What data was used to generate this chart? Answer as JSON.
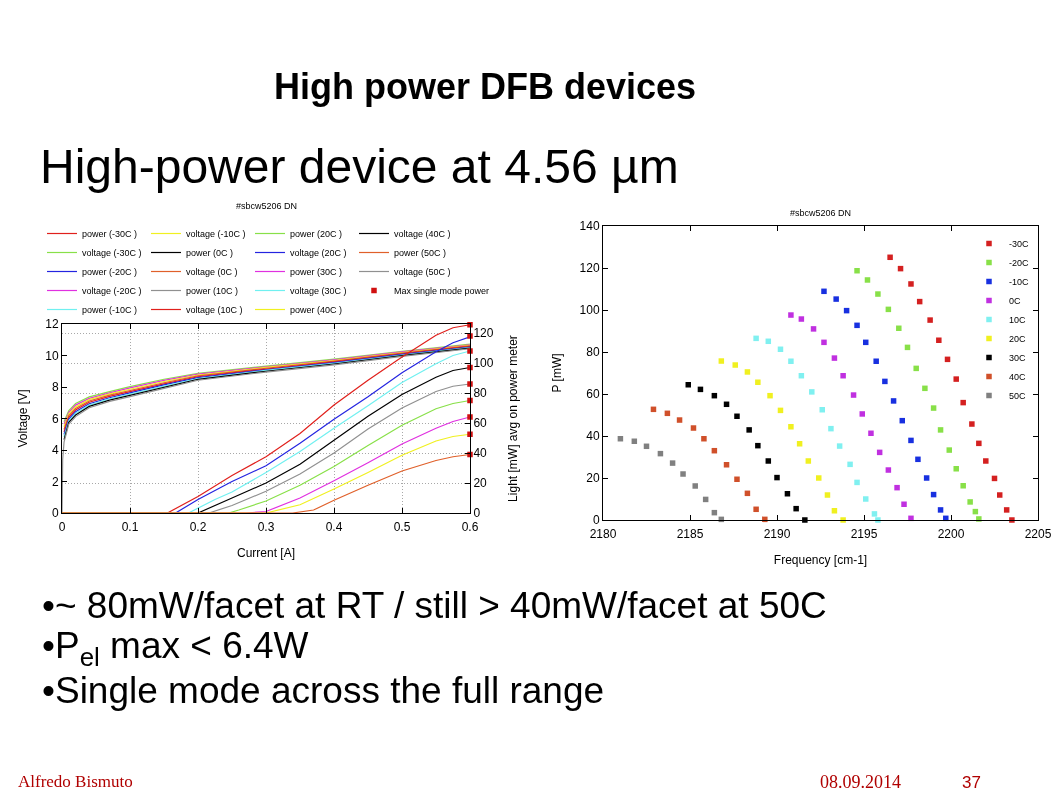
{
  "chart_data": [
    {
      "type": "other",
      "title": "High power DFB devices",
      "subtitle": "High-power device at 4.56 µm",
      "annotations": [
        "•~ 80mW/facet at RT / still > 40mW/facet at 50C",
        "•P$_{el}$ max < 6.4W",
        "•Single mode across the full range",
        "Alfredo Bismuto",
        "08.09.2014",
        "37"
      ]
    },
    {
      "type": "line",
      "title": "#sbcw5206 DN",
      "xlabel": "Current [A]",
      "ylabel": "Voltage [V]",
      "y2label": "Light [mW] avg on power meter",
      "xlim": [
        0,
        0.6
      ],
      "xticks": [
        0,
        0.1,
        0.2,
        0.3,
        0.4,
        0.5,
        0.6
      ],
      "ylim": [
        0,
        12
      ],
      "yticks": [
        0,
        2,
        4,
        6,
        8,
        10,
        12
      ],
      "y2lim": [
        0,
        126
      ],
      "y2ticks": [
        0,
        20,
        40,
        60,
        80,
        100,
        120
      ],
      "grid": true,
      "legend": "top",
      "line_style": "solid",
      "series": [
        {
          "name": "power (-30C )",
          "color": "#e0201c",
          "axis": "y2",
          "x": [
            0,
            0.155,
            0.2,
            0.25,
            0.3,
            0.35,
            0.4,
            0.45,
            0.5,
            0.55,
            0.575,
            0.6
          ],
          "values": [
            0,
            0,
            11,
            25,
            37.5,
            53,
            72,
            88.5,
            104,
            118.5,
            123.5,
            125.5
          ]
        },
        {
          "name": "voltage (-30C )",
          "color": "#88e048",
          "x": [
            0.003,
            0.01,
            0.02,
            0.04,
            0.07,
            0.1,
            0.15,
            0.2,
            0.3,
            0.4,
            0.5,
            0.6
          ],
          "values": [
            5.8,
            6.5,
            6.95,
            7.37,
            7.71,
            8.02,
            8.49,
            8.87,
            9.33,
            9.77,
            10.27,
            10.72
          ]
        },
        {
          "name": "power (-20C )",
          "color": "#2424e0",
          "axis": "y2",
          "x": [
            0,
            0.167,
            0.2,
            0.25,
            0.3,
            0.35,
            0.4,
            0.45,
            0.5,
            0.55,
            0.575,
            0.6
          ],
          "values": [
            0,
            0,
            9,
            21,
            31.5,
            46.5,
            62.5,
            77.5,
            93.5,
            107.5,
            113.5,
            117.5
          ]
        },
        {
          "name": "voltage (-20C )",
          "color": "#e030e0",
          "x": [
            0.003,
            0.01,
            0.02,
            0.04,
            0.07,
            0.1,
            0.15,
            0.2,
            0.3,
            0.4,
            0.5,
            0.6
          ],
          "values": [
            5.64,
            6.39,
            6.85,
            7.28,
            7.63,
            7.94,
            8.42,
            8.82,
            9.28,
            9.73,
            10.23,
            10.68
          ]
        },
        {
          "name": "power (-10C )",
          "color": "#70f0f0",
          "axis": "y2",
          "x": [
            0,
            0.186,
            0.225,
            0.25,
            0.3,
            0.35,
            0.4,
            0.45,
            0.5,
            0.55,
            0.575,
            0.6
          ],
          "values": [
            0,
            0,
            9,
            14,
            27,
            41,
            56.5,
            71.5,
            87,
            99.5,
            105,
            108
          ]
        },
        {
          "name": "voltage (-10C )",
          "color": "#f0f020",
          "x": [
            0.003,
            0.01,
            0.02,
            0.04,
            0.07,
            0.1,
            0.15,
            0.2,
            0.3,
            0.4,
            0.5,
            0.6
          ],
          "values": [
            5.48,
            6.29,
            6.74,
            7.2,
            7.56,
            7.86,
            8.35,
            8.76,
            9.24,
            9.68,
            10.19,
            10.65
          ]
        },
        {
          "name": "power (0C )",
          "color": "#000000",
          "axis": "y2",
          "x": [
            0,
            0.2,
            0.25,
            0.3,
            0.35,
            0.4,
            0.45,
            0.5,
            0.55,
            0.575,
            0.6
          ],
          "values": [
            0,
            0,
            10,
            20,
            32.5,
            48.5,
            64.5,
            79,
            90.5,
            95,
            97
          ]
        },
        {
          "name": "voltage (0C )",
          "color": "#e0602a",
          "x": [
            0.003,
            0.01,
            0.02,
            0.04,
            0.07,
            0.1,
            0.15,
            0.2,
            0.3,
            0.4,
            0.5,
            0.6
          ],
          "values": [
            5.31,
            6.18,
            6.64,
            7.11,
            7.48,
            7.78,
            8.27,
            8.71,
            9.19,
            9.64,
            10.15,
            10.61
          ]
        },
        {
          "name": "power (10C )",
          "color": "#909090",
          "axis": "y2",
          "x": [
            0,
            0.216,
            0.25,
            0.3,
            0.35,
            0.4,
            0.45,
            0.5,
            0.55,
            0.575,
            0.6
          ],
          "values": [
            0,
            0,
            5,
            14.5,
            26,
            40,
            56,
            70,
            81,
            84.5,
            86
          ]
        },
        {
          "name": "voltage (10C )",
          "color": "#e0201c",
          "x": [
            0.003,
            0.01,
            0.02,
            0.04,
            0.07,
            0.1,
            0.15,
            0.2,
            0.3,
            0.4,
            0.5,
            0.6
          ],
          "values": [
            5.15,
            6.08,
            6.54,
            7.03,
            7.4,
            7.71,
            8.2,
            8.65,
            9.14,
            9.59,
            10.11,
            10.58
          ]
        },
        {
          "name": "power (20C )",
          "color": "#88e048",
          "axis": "y2",
          "x": [
            0,
            0.245,
            0.26,
            0.3,
            0.35,
            0.4,
            0.45,
            0.5,
            0.55,
            0.575,
            0.6
          ],
          "values": [
            0,
            0,
            2,
            8,
            18.5,
            31,
            45,
            58.5,
            69.5,
            73,
            75
          ]
        },
        {
          "name": "voltage (20C )",
          "color": "#2424e0",
          "x": [
            0.003,
            0.01,
            0.02,
            0.04,
            0.07,
            0.1,
            0.15,
            0.2,
            0.3,
            0.4,
            0.5,
            0.6
          ],
          "values": [
            4.99,
            5.97,
            6.43,
            6.94,
            7.32,
            7.63,
            8.13,
            8.6,
            9.09,
            9.55,
            10.07,
            10.54
          ]
        },
        {
          "name": "power (30C )",
          "color": "#e030e0",
          "axis": "y2",
          "x": [
            0,
            0.27,
            0.3,
            0.35,
            0.4,
            0.45,
            0.5,
            0.55,
            0.575,
            0.6
          ],
          "values": [
            0,
            0,
            1,
            10,
            21.5,
            33.5,
            46,
            56.5,
            61,
            64
          ]
        },
        {
          "name": "voltage (30C )",
          "color": "#70f0f0",
          "x": [
            0.003,
            0.01,
            0.02,
            0.04,
            0.07,
            0.1,
            0.15,
            0.2,
            0.3,
            0.4,
            0.5,
            0.6
          ],
          "values": [
            4.83,
            5.86,
            6.33,
            6.85,
            7.25,
            7.55,
            8.06,
            8.54,
            9.05,
            9.5,
            10.03,
            10.5
          ]
        },
        {
          "name": "power (40C )",
          "color": "#f0f020",
          "axis": "y2",
          "x": [
            0,
            0.3,
            0.35,
            0.4,
            0.45,
            0.5,
            0.55,
            0.575,
            0.6
          ],
          "values": [
            0,
            0,
            5.5,
            16,
            27,
            38.5,
            48,
            51,
            52.5
          ]
        },
        {
          "name": "voltage (40C )",
          "color": "#000000",
          "x": [
            0.003,
            0.01,
            0.02,
            0.04,
            0.07,
            0.1,
            0.15,
            0.2,
            0.3,
            0.4,
            0.5,
            0.6
          ],
          "values": [
            4.66,
            5.76,
            6.22,
            6.77,
            7.17,
            7.47,
            7.98,
            8.49,
            9.0,
            9.46,
            9.99,
            10.47
          ]
        },
        {
          "name": "power (50C )",
          "color": "#e0602a",
          "axis": "y2",
          "x": [
            0,
            0.339,
            0.37,
            0.4,
            0.45,
            0.5,
            0.55,
            0.575,
            0.6
          ],
          "values": [
            0,
            0,
            2,
            8.5,
            18.5,
            28,
            35,
            37.5,
            39
          ]
        },
        {
          "name": "voltage (50C )",
          "color": "#909090",
          "x": [
            0,
            0.001,
            0.003,
            0.01,
            0.02,
            0.04,
            0.07,
            0.1,
            0.15,
            0.2,
            0.3,
            0.4,
            0.5,
            0.6
          ],
          "values": [
            0,
            3.4,
            4.5,
            5.65,
            6.12,
            6.68,
            7.09,
            7.39,
            7.91,
            8.43,
            8.95,
            9.41,
            9.95,
            10.43
          ]
        },
        {
          "name": "Max single mode power",
          "type": "scatter",
          "marker": "square",
          "color": "#d01010",
          "axis": "y2",
          "x": [
            0.6,
            0.6,
            0.6,
            0.6,
            0.6,
            0.6,
            0.6,
            0.6,
            0.6
          ],
          "values": [
            125.5,
            118,
            108,
            97,
            86,
            75,
            64,
            52.5,
            39
          ]
        }
      ]
    },
    {
      "type": "scatter",
      "title": "#sbcw5206 DN",
      "xlabel": "Frequency [cm-1]",
      "ylabel": "P [mW]",
      "xlim": [
        2180,
        2205
      ],
      "xticks": [
        2180,
        2185,
        2190,
        2195,
        2200,
        2205
      ],
      "ylim": [
        0,
        140
      ],
      "yticks": [
        0,
        20,
        40,
        60,
        80,
        100,
        120,
        140
      ],
      "legend": "top right",
      "marker": "square",
      "series": [
        {
          "name": "-30C",
          "color": "#d42020",
          "x": [
            2196.5,
            2197.1,
            2197.7,
            2198.2,
            2198.8,
            2199.3,
            2199.8,
            2200.3,
            2200.7,
            2201.2,
            2201.6,
            2202.0,
            2202.5,
            2202.8,
            2203.2,
            2203.5
          ],
          "values": [
            125.1,
            119.7,
            112.4,
            104.0,
            95.2,
            85.6,
            76.5,
            67.1,
            55.9,
            45.7,
            36.5,
            28.1,
            19.8,
            11.9,
            4.8,
            0
          ]
        },
        {
          "name": "-20C",
          "color": "#88e048",
          "x": [
            2194.6,
            2195.2,
            2195.8,
            2196.4,
            2197.0,
            2197.5,
            2198.0,
            2198.5,
            2199.0,
            2199.4,
            2199.9,
            2200.3,
            2200.7,
            2201.1,
            2201.4,
            2201.6
          ],
          "values": [
            118.7,
            114.3,
            107.6,
            100.3,
            91.3,
            82.2,
            72.2,
            62.7,
            53.3,
            42.9,
            33.3,
            24.4,
            16.3,
            8.6,
            4.0,
            0.5
          ]
        },
        {
          "name": "-10C",
          "color": "#1830e0",
          "x": [
            2192.7,
            2193.4,
            2194.0,
            2194.6,
            2195.1,
            2195.7,
            2196.2,
            2196.7,
            2197.2,
            2197.7,
            2198.1,
            2198.6,
            2199.0,
            2199.4,
            2199.7
          ],
          "values": [
            108.9,
            105.2,
            99.7,
            92.7,
            84.6,
            75.6,
            66.0,
            56.7,
            47.3,
            37.9,
            28.9,
            20.0,
            12.1,
            4.8,
            0.8
          ]
        },
        {
          "name": "0C",
          "color": "#c030e0",
          "x": [
            2190.8,
            2191.4,
            2192.1,
            2192.7,
            2193.3,
            2193.8,
            2194.4,
            2194.9,
            2195.4,
            2195.9,
            2196.4,
            2196.9,
            2197.3,
            2197.7
          ],
          "values": [
            97.6,
            95.7,
            91.0,
            84.6,
            77.1,
            68.7,
            59.5,
            50.5,
            41.3,
            32.2,
            23.8,
            15.4,
            7.5,
            0.8
          ]
        },
        {
          "name": "10C",
          "color": "#80f0f0",
          "x": [
            2188.8,
            2189.5,
            2190.2,
            2190.8,
            2191.4,
            2192.0,
            2192.6,
            2193.1,
            2193.6,
            2194.2,
            2194.6,
            2195.1,
            2195.6,
            2195.8
          ],
          "values": [
            86.5,
            85.1,
            81.3,
            75.6,
            68.7,
            61.0,
            52.5,
            43.5,
            35.2,
            26.5,
            17.9,
            10.0,
            2.9,
            0
          ]
        },
        {
          "name": "20C",
          "color": "#f0f020",
          "x": [
            2186.8,
            2187.6,
            2188.3,
            2188.9,
            2189.6,
            2190.2,
            2190.8,
            2191.3,
            2191.8,
            2192.4,
            2192.9,
            2193.3,
            2193.8
          ],
          "values": [
            75.7,
            73.8,
            70.5,
            65.6,
            59.2,
            52.2,
            44.4,
            36.3,
            28.1,
            20.0,
            11.9,
            4.4,
            0
          ]
        },
        {
          "name": "30C",
          "color": "#000000",
          "x": [
            2184.9,
            2185.6,
            2186.4,
            2187.1,
            2187.7,
            2188.4,
            2188.9,
            2189.5,
            2190.0,
            2190.6,
            2191.1,
            2191.6
          ],
          "values": [
            64.4,
            62.2,
            59.2,
            55.1,
            49.4,
            42.9,
            35.4,
            28.1,
            20.2,
            12.5,
            5.4,
            0
          ]
        },
        {
          "name": "40C",
          "color": "#d0502a",
          "x": [
            2182.9,
            2183.7,
            2184.4,
            2185.2,
            2185.8,
            2186.4,
            2187.1,
            2187.7,
            2188.3,
            2188.8,
            2189.3
          ],
          "values": [
            52.7,
            50.8,
            47.6,
            43.8,
            38.7,
            33.0,
            26.3,
            19.4,
            12.7,
            5.1,
            0.3
          ]
        },
        {
          "name": "50C",
          "color": "#808080",
          "x": [
            2181.0,
            2181.8,
            2182.5,
            2183.3,
            2184.0,
            2184.6,
            2185.3,
            2185.9,
            2186.4,
            2186.8
          ],
          "values": [
            38.7,
            37.5,
            35.1,
            31.6,
            27.1,
            21.9,
            16.2,
            9.8,
            3.5,
            0.3
          ]
        }
      ]
    }
  ]
}
